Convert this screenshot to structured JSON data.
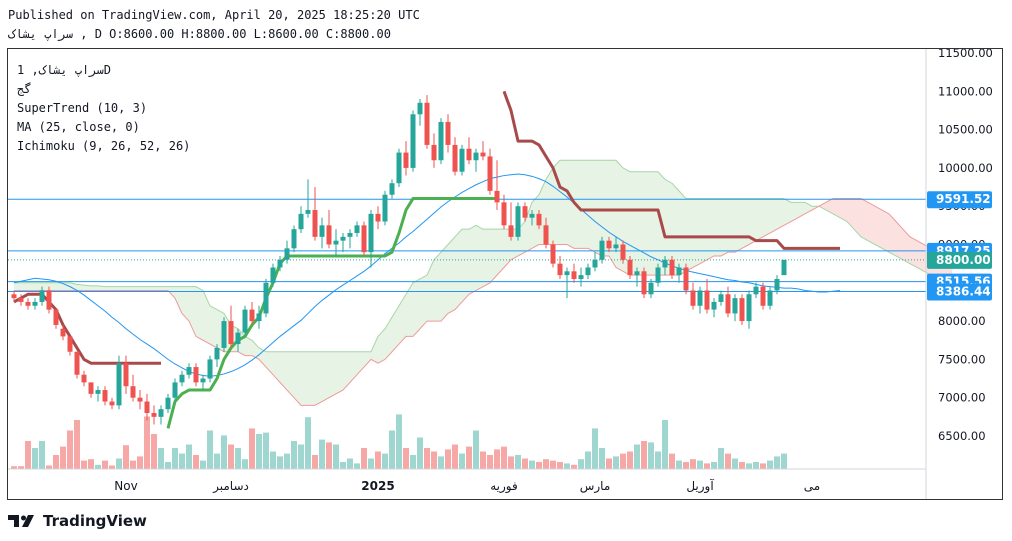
{
  "header": {
    "published": "Published on TradingView.com, April 20, 2025 18:25:20 UTC",
    "ohlc": "سراپ  یشاک , D O:8600.00 H:8800.00 L:8600.00 C:8800.00"
  },
  "legend": {
    "symbol": "سراپ  یشاک, 1D",
    "exchange": "گج",
    "supertrend": "SuperTrend (10, 3)",
    "ma": "MA (25, close, 0)",
    "ichimoku": "Ichimoku (9, 26, 52, 26)"
  },
  "brand": {
    "name": "TradingView",
    "logo_icon": "tradingview-logo-icon"
  },
  "colors": {
    "up": "#26a69a",
    "down": "#ef5350",
    "vol_up": "#9fd6d0",
    "vol_down": "#f5a8a6",
    "supertrend_up": "#4caf50",
    "supertrend_down": "#a84a4a",
    "ma": "#2196f3",
    "cloud_bull": "#e7f3e4",
    "cloud_bear": "#fbe2e0",
    "price_line": "#2196f3"
  },
  "chart_data": {
    "type": "candlestick",
    "y_axis": {
      "min": 6000,
      "max": 11500,
      "ticks": [
        "11500.00",
        "11000.00",
        "10500.00",
        "10000.00",
        "9500.00",
        "9000.00",
        "8500.00",
        "8000.00",
        "7500.00",
        "7000.00",
        "6500.00"
      ],
      "tick_values": [
        11500,
        11000,
        10500,
        10000,
        9500,
        9000,
        8500,
        8000,
        7500,
        7000,
        6500
      ],
      "position": "right"
    },
    "x_axis": {
      "labels": [
        {
          "label": "Nov",
          "index": 16
        },
        {
          "label": "دسامبر",
          "index": 31
        },
        {
          "label": "2025",
          "index": 52
        },
        {
          "label": "فوریه",
          "index": 70
        },
        {
          "label": "مارس",
          "index": 83
        },
        {
          "label": "آوریل",
          "index": 98
        },
        {
          "label": "می",
          "index": 114
        }
      ]
    },
    "candles": [
      [
        8350,
        8400,
        8250,
        8300
      ],
      [
        8300,
        8350,
        8200,
        8250
      ],
      [
        8250,
        8300,
        8150,
        8200
      ],
      [
        8200,
        8300,
        8150,
        8250
      ],
      [
        8250,
        8450,
        8200,
        8400
      ],
      [
        8400,
        8450,
        8100,
        8150
      ],
      [
        8150,
        8150,
        7900,
        7950
      ],
      [
        7900,
        7950,
        7750,
        7800
      ],
      [
        7800,
        7800,
        7550,
        7600
      ],
      [
        7600,
        7600,
        7250,
        7300
      ],
      [
        7300,
        7350,
        7150,
        7200
      ],
      [
        7200,
        7200,
        7000,
        7050
      ],
      [
        7050,
        7150,
        6950,
        7100
      ],
      [
        7100,
        7150,
        6900,
        6950
      ],
      [
        6950,
        7000,
        6850,
        6900
      ],
      [
        6900,
        7550,
        6850,
        7450
      ],
      [
        7450,
        7550,
        7050,
        7150
      ],
      [
        7150,
        7300,
        6950,
        7000
      ],
      [
        7000,
        7100,
        6850,
        6950
      ],
      [
        6950,
        7050,
        6700,
        6800
      ],
      [
        6800,
        6900,
        6650,
        6750
      ],
      [
        6750,
        6900,
        6650,
        6850
      ],
      [
        6850,
        7050,
        6800,
        7000
      ],
      [
        7000,
        7250,
        6950,
        7200
      ],
      [
        7200,
        7350,
        7150,
        7300
      ],
      [
        7300,
        7450,
        7250,
        7400
      ],
      [
        7400,
        7450,
        7150,
        7200
      ],
      [
        7200,
        7300,
        7100,
        7250
      ],
      [
        7250,
        7550,
        7200,
        7500
      ],
      [
        7500,
        7700,
        7400,
        7650
      ],
      [
        7650,
        8050,
        7600,
        8000
      ],
      [
        8000,
        8200,
        7650,
        7700
      ],
      [
        7700,
        7900,
        7600,
        7850
      ],
      [
        7850,
        8200,
        7800,
        8150
      ],
      [
        8150,
        8250,
        7950,
        8000
      ],
      [
        8000,
        8200,
        7900,
        8100
      ],
      [
        8100,
        8550,
        8050,
        8500
      ],
      [
        8500,
        8750,
        8450,
        8700
      ],
      [
        8700,
        8850,
        8650,
        8800
      ],
      [
        8800,
        9050,
        8750,
        8950
      ],
      [
        8950,
        9250,
        8900,
        9200
      ],
      [
        9200,
        9500,
        9150,
        9400
      ],
      [
        9400,
        9850,
        9350,
        9450
      ],
      [
        9450,
        9750,
        9050,
        9100
      ],
      [
        9100,
        9350,
        8950,
        9250
      ],
      [
        9250,
        9450,
        8950,
        9000
      ],
      [
        9000,
        9200,
        8850,
        9050
      ],
      [
        9050,
        9150,
        8900,
        9100
      ],
      [
        9100,
        9200,
        8950,
        9150
      ],
      [
        9150,
        9300,
        9100,
        9250
      ],
      [
        9250,
        9300,
        8850,
        8900
      ],
      [
        8900,
        9450,
        8700,
        9400
      ],
      [
        9400,
        9500,
        9200,
        9300
      ],
      [
        9300,
        9700,
        9250,
        9650
      ],
      [
        9650,
        9850,
        9600,
        9800
      ],
      [
        9800,
        10250,
        9750,
        10200
      ],
      [
        10200,
        10350,
        9900,
        10000
      ],
      [
        10000,
        10750,
        9950,
        10700
      ],
      [
        10700,
        10900,
        10550,
        10850
      ],
      [
        10850,
        10950,
        10250,
        10300
      ],
      [
        10300,
        10450,
        10000,
        10100
      ],
      [
        10100,
        10650,
        10050,
        10600
      ],
      [
        10600,
        10700,
        10200,
        10300
      ],
      [
        10300,
        10400,
        9900,
        9950
      ],
      [
        9950,
        10300,
        9900,
        10250
      ],
      [
        10250,
        10400,
        10050,
        10100
      ],
      [
        10100,
        10250,
        9950,
        10200
      ],
      [
        10200,
        10350,
        10100,
        10150
      ],
      [
        10150,
        10250,
        9650,
        9700
      ],
      [
        9700,
        10100,
        9450,
        9550
      ],
      [
        9550,
        9650,
        9200,
        9250
      ],
      [
        9250,
        9550,
        9050,
        9100
      ],
      [
        9100,
        9550,
        9050,
        9500
      ],
      [
        9500,
        9550,
        9300,
        9350
      ],
      [
        9350,
        9450,
        9250,
        9400
      ],
      [
        9400,
        9450,
        9200,
        9250
      ],
      [
        9250,
        9350,
        8950,
        9000
      ],
      [
        9000,
        9050,
        8700,
        8750
      ],
      [
        8750,
        8850,
        8550,
        8600
      ],
      [
        8600,
        8700,
        8300,
        8650
      ],
      [
        8650,
        8750,
        8500,
        8550
      ],
      [
        8550,
        8700,
        8450,
        8600
      ],
      [
        8600,
        8750,
        8550,
        8700
      ],
      [
        8700,
        8900,
        8650,
        8800
      ],
      [
        8800,
        9100,
        8750,
        9050
      ],
      [
        9050,
        9100,
        8900,
        8950
      ],
      [
        8950,
        9100,
        8900,
        9000
      ],
      [
        9000,
        9050,
        8750,
        8800
      ],
      [
        8800,
        8850,
        8550,
        8600
      ],
      [
        8600,
        8700,
        8450,
        8650
      ],
      [
        8650,
        8700,
        8300,
        8350
      ],
      [
        8350,
        8550,
        8300,
        8500
      ],
      [
        8500,
        8750,
        8450,
        8700
      ],
      [
        8700,
        8850,
        8600,
        8800
      ],
      [
        8800,
        8850,
        8550,
        8600
      ],
      [
        8600,
        8750,
        8500,
        8700
      ],
      [
        8700,
        8750,
        8350,
        8400
      ],
      [
        8400,
        8500,
        8150,
        8200
      ],
      [
        8200,
        8450,
        8100,
        8400
      ],
      [
        8400,
        8550,
        8100,
        8150
      ],
      [
        8150,
        8300,
        8050,
        8250
      ],
      [
        8250,
        8400,
        8200,
        8350
      ],
      [
        8350,
        8450,
        8050,
        8100
      ],
      [
        8100,
        8350,
        8000,
        8300
      ],
      [
        8300,
        8350,
        7950,
        8000
      ],
      [
        8000,
        8400,
        7900,
        8350
      ],
      [
        8350,
        8500,
        8300,
        8450
      ],
      [
        8450,
        8500,
        8150,
        8200
      ],
      [
        8200,
        8450,
        8150,
        8400
      ],
      [
        8400,
        8600,
        8350,
        8550
      ],
      [
        8600,
        8800,
        8600,
        8800
      ]
    ],
    "volumes": [
      0.04,
      0.04,
      0.4,
      0.3,
      0.4,
      0.05,
      0.2,
      0.32,
      0.55,
      0.7,
      0.12,
      0.14,
      0.06,
      0.12,
      0.05,
      0.15,
      0.34,
      0.12,
      0.18,
      0.75,
      0.5,
      0.3,
      0.1,
      0.3,
      0.22,
      0.35,
      0.2,
      0.12,
      0.55,
      0.22,
      0.48,
      0.35,
      0.3,
      0.14,
      0.58,
      0.5,
      0.52,
      0.25,
      0.18,
      0.22,
      0.4,
      0.35,
      0.74,
      0.2,
      0.42,
      0.38,
      0.35,
      0.1,
      0.15,
      0.08,
      0.3,
      0.15,
      0.25,
      0.22,
      0.55,
      0.78,
      0.3,
      0.2,
      0.45,
      0.3,
      0.25,
      0.18,
      0.28,
      0.35,
      0.22,
      0.32,
      0.55,
      0.25,
      0.2,
      0.28,
      0.32,
      0.18,
      0.2,
      0.15,
      0.12,
      0.1,
      0.14,
      0.12,
      0.1,
      0.08,
      0.06,
      0.14,
      0.25,
      0.58,
      0.3,
      0.15,
      0.18,
      0.22,
      0.25,
      0.35,
      0.4,
      0.38,
      0.25,
      0.7,
      0.22,
      0.12,
      0.1,
      0.14,
      0.12,
      0.08,
      0.1,
      0.3,
      0.22,
      0.15,
      0.1,
      0.08,
      0.1,
      0.08,
      0.12,
      0.18,
      0.22,
      0.35,
      0.2,
      0.35,
      0.5,
      0.6,
      0.62
    ],
    "supertrend": [
      {
        "from": 0,
        "to": 21,
        "dir": "down",
        "values": [
          8250,
          8300,
          8350,
          8350,
          8350,
          8250,
          8150,
          7950,
          7800,
          7650,
          7500,
          7450,
          7450,
          7450,
          7450,
          7450,
          7450,
          7450,
          7450,
          7450,
          7450,
          7450
        ]
      },
      {
        "from": 22,
        "to": 69,
        "dir": "up",
        "values": [
          6600,
          6950,
          7050,
          7100,
          7100,
          7100,
          7100,
          7250,
          7500,
          7650,
          7750,
          7800,
          7950,
          8050,
          8300,
          8500,
          8750,
          8850,
          8850,
          8850,
          8850,
          8850,
          8850,
          8850,
          8850,
          8850,
          8850,
          8850,
          8850,
          8850,
          8850,
          8850,
          8900,
          9150,
          9450,
          9600,
          9600,
          9600,
          9600,
          9600,
          9600,
          9600,
          9600,
          9600,
          9600,
          9600,
          9600,
          9600
        ]
      },
      {
        "from": 70,
        "to": 118,
        "dir": "down",
        "values": [
          11000,
          10750,
          10350,
          10350,
          10350,
          10300,
          10150,
          10000,
          9750,
          9700,
          9550,
          9450,
          9450,
          9450,
          9450,
          9450,
          9450,
          9450,
          9450,
          9450,
          9450,
          9450,
          9450,
          9100,
          9100,
          9100,
          9100,
          9100,
          9100,
          9100,
          9100,
          9100,
          9100,
          9100,
          9100,
          9100,
          9050,
          9050,
          9050,
          9050,
          8950,
          8950,
          8950,
          8950,
          8950,
          8950,
          8950,
          8950,
          8950
        ]
      }
    ],
    "ma": [
      8500,
      8520,
      8540,
      8560,
      8550,
      8540,
      8520,
      8490,
      8450,
      8400,
      8340,
      8270,
      8200,
      8130,
      8050,
      7980,
      7900,
      7830,
      7760,
      7700,
      7640,
      7570,
      7500,
      7440,
      7390,
      7340,
      7310,
      7290,
      7280,
      7290,
      7310,
      7340,
      7380,
      7430,
      7490,
      7560,
      7640,
      7720,
      7800,
      7870,
      7940,
      8010,
      8100,
      8190,
      8270,
      8340,
      8410,
      8470,
      8530,
      8590,
      8650,
      8720,
      8800,
      8880,
      8950,
      9020,
      9100,
      9170,
      9250,
      9330,
      9410,
      9490,
      9560,
      9620,
      9680,
      9730,
      9780,
      9820,
      9860,
      9880,
      9900,
      9910,
      9920,
      9910,
      9890,
      9860,
      9820,
      9760,
      9690,
      9620,
      9540,
      9460,
      9380,
      9300,
      9230,
      9160,
      9100,
      9040,
      8990,
      8940,
      8890,
      8840,
      8800,
      8760,
      8720,
      8690,
      8660,
      8640,
      8620,
      8600,
      8580,
      8560,
      8540,
      8530,
      8510,
      8500,
      8480,
      8460,
      8450,
      8440,
      8430,
      8430,
      8420,
      8400,
      8390,
      8380,
      8380,
      8390,
      8400
    ],
    "cloud": {
      "top": [
        8500,
        8500,
        8500,
        8500,
        8500,
        8500,
        8500,
        8500,
        8500,
        8480,
        8470,
        8460,
        8460,
        8450,
        8450,
        8450,
        8450,
        8450,
        8450,
        8450,
        8450,
        8450,
        8450,
        8450,
        8450,
        8450,
        8450,
        8400,
        8200,
        8150,
        8100,
        7950,
        7900,
        7800,
        7750,
        7650,
        7600,
        7600,
        7600,
        7600,
        7600,
        7600,
        7600,
        7600,
        7600,
        7600,
        7600,
        7600,
        7600,
        7600,
        7600,
        7600,
        7800,
        7900,
        8050,
        8200,
        8350,
        8500,
        8550,
        8600,
        8800,
        8900,
        9000,
        9100,
        9200,
        9200,
        9250,
        9200,
        9200,
        9200,
        9200,
        9200,
        9200,
        9300,
        9550,
        9650,
        9850,
        10000,
        10100,
        10100,
        10100,
        10100,
        10100,
        10100,
        10100,
        10100,
        10100,
        10000,
        9950,
        9950,
        9950,
        9950,
        9950,
        9850,
        9800,
        9700,
        9600,
        9600,
        9600,
        9600,
        9600,
        9600,
        9600,
        9600,
        9600,
        9600,
        9600,
        9600,
        9600,
        9600,
        9600,
        9550,
        9550,
        9550,
        9500,
        9500,
        9450,
        9400,
        9350,
        9300,
        9200,
        9100,
        9050,
        9000,
        8950,
        8900,
        8850,
        8800,
        8750,
        8700,
        8650,
        8600,
        8550,
        8500,
        8450
      ],
      "bottom": [
        8400,
        8400,
        8400,
        8400,
        8400,
        8400,
        8400,
        8400,
        8400,
        8400,
        8400,
        8400,
        8400,
        8400,
        8400,
        8400,
        8400,
        8400,
        8400,
        8400,
        8400,
        8400,
        8400,
        8300,
        8100,
        8000,
        7800,
        7750,
        7700,
        7650,
        7600,
        7600,
        7600,
        7550,
        7550,
        7500,
        7400,
        7300,
        7200,
        7100,
        7000,
        6900,
        6900,
        6900,
        6950,
        7000,
        7050,
        7100,
        7200,
        7300,
        7400,
        7500,
        7450,
        7500,
        7600,
        7700,
        7800,
        7800,
        7900,
        8000,
        8000,
        8000,
        8100,
        8150,
        8250,
        8350,
        8400,
        8450,
        8500,
        8600,
        8700,
        8800,
        8850,
        8900,
        8950,
        9000,
        9000,
        9000,
        9000,
        9000,
        8950,
        8950,
        8950,
        8900,
        8850,
        8850,
        8700,
        8650,
        8600,
        8600,
        8600,
        8600,
        8600,
        8600,
        8600,
        8600,
        8650,
        8700,
        8750,
        8800,
        8850,
        8850,
        8900,
        8900,
        8950,
        9000,
        9050,
        9100,
        9150,
        9200,
        9250,
        9300,
        9350,
        9400,
        9450,
        9500,
        9550,
        9600,
        9600,
        9600,
        9600,
        9600,
        9550,
        9500,
        9450,
        9400,
        9300,
        9200,
        9100,
        9050,
        9000,
        8950,
        8900,
        8850,
        8800
      ]
    },
    "hlines": [
      9591.52,
      8917.25,
      8515.56,
      8386.44
    ],
    "last_price": 8800.0,
    "price_labels": [
      {
        "value": 9591.52,
        "text": "9591.52"
      },
      {
        "value": 8917.25,
        "text": "8917.25"
      },
      {
        "value": 8800.0,
        "text": "8800.00"
      },
      {
        "value": 8515.56,
        "text": "8515.56"
      },
      {
        "value": 8386.44,
        "text": "8386.44"
      }
    ]
  }
}
